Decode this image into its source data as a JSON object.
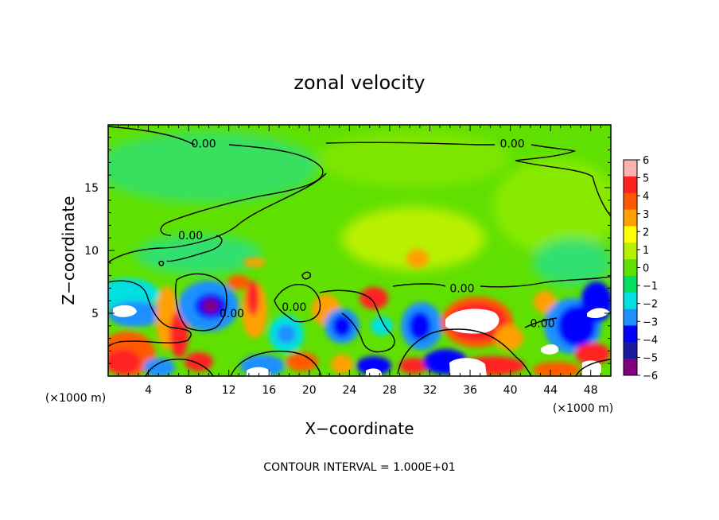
{
  "chart_data": {
    "type": "heatmap",
    "title": "zonal velocity",
    "xlabel": "X−coordinate",
    "ylabel": "Z−coordinate",
    "x_unit_label": "(×1000 m)",
    "z_unit_label": "(×1000 m)",
    "xlim": [
      0,
      50
    ],
    "zlim": [
      0,
      20
    ],
    "x_ticks": [
      4,
      8,
      12,
      16,
      20,
      24,
      28,
      32,
      36,
      40,
      44,
      48
    ],
    "z_ticks": [
      5,
      10,
      15
    ],
    "footer": "CONTOUR INTERVAL = 1.000E+01",
    "colorbar": {
      "levels": [
        6,
        5,
        4,
        3,
        2,
        1,
        0,
        -1,
        -2,
        -3,
        -4,
        -5,
        -6
      ],
      "tick_labels": [
        "6",
        "5",
        "4",
        "3",
        "2",
        "1",
        "0",
        "−1",
        "−2",
        "−3",
        "−4",
        "−5",
        "−6"
      ],
      "colors": [
        "#ffb0b0",
        "#ff2020",
        "#ff5a00",
        "#ffa000",
        "#ffff00",
        "#b8f000",
        "#60e000",
        "#00e060",
        "#00e0e0",
        "#1e90ff",
        "#0000ff",
        "#1a1aa0",
        "#800080"
      ]
    },
    "contour_labels": [
      {
        "text": "0.00",
        "x": 9.5,
        "z": 18.5
      },
      {
        "text": "0.00",
        "x": 40.2,
        "z": 18.5
      },
      {
        "text": "0.00",
        "x": 8.2,
        "z": 11.2
      },
      {
        "text": "0.00",
        "x": 35.2,
        "z": 7.0
      },
      {
        "text": "0.00",
        "x": 18.5,
        "z": 5.5
      },
      {
        "text": "0.00",
        "x": 43.2,
        "z": 4.2
      },
      {
        "text": "0.00",
        "x": 12.3,
        "z": 5.0
      }
    ]
  }
}
